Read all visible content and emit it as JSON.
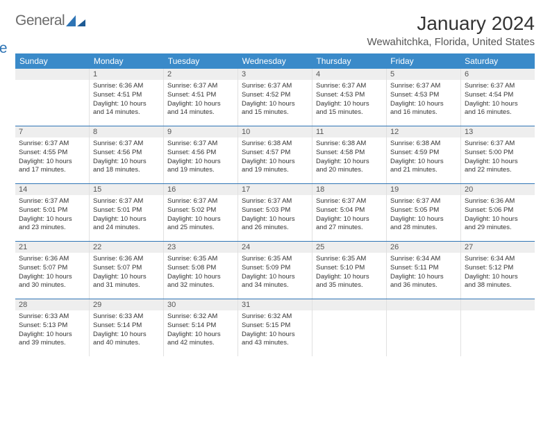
{
  "logo": {
    "general": "General",
    "blue": "Blue"
  },
  "title": "January 2024",
  "location": "Wewahitchka, Florida, United States",
  "headerColor": "#3a8ac9",
  "borderColor": "#2e74b5",
  "dayHeaders": [
    "Sunday",
    "Monday",
    "Tuesday",
    "Wednesday",
    "Thursday",
    "Friday",
    "Saturday"
  ],
  "weeks": [
    [
      {
        "n": "",
        "sr": "",
        "ss": "",
        "d1": "",
        "d2": ""
      },
      {
        "n": "1",
        "sr": "Sunrise: 6:36 AM",
        "ss": "Sunset: 4:51 PM",
        "d1": "Daylight: 10 hours",
        "d2": "and 14 minutes."
      },
      {
        "n": "2",
        "sr": "Sunrise: 6:37 AM",
        "ss": "Sunset: 4:51 PM",
        "d1": "Daylight: 10 hours",
        "d2": "and 14 minutes."
      },
      {
        "n": "3",
        "sr": "Sunrise: 6:37 AM",
        "ss": "Sunset: 4:52 PM",
        "d1": "Daylight: 10 hours",
        "d2": "and 15 minutes."
      },
      {
        "n": "4",
        "sr": "Sunrise: 6:37 AM",
        "ss": "Sunset: 4:53 PM",
        "d1": "Daylight: 10 hours",
        "d2": "and 15 minutes."
      },
      {
        "n": "5",
        "sr": "Sunrise: 6:37 AM",
        "ss": "Sunset: 4:53 PM",
        "d1": "Daylight: 10 hours",
        "d2": "and 16 minutes."
      },
      {
        "n": "6",
        "sr": "Sunrise: 6:37 AM",
        "ss": "Sunset: 4:54 PM",
        "d1": "Daylight: 10 hours",
        "d2": "and 16 minutes."
      }
    ],
    [
      {
        "n": "7",
        "sr": "Sunrise: 6:37 AM",
        "ss": "Sunset: 4:55 PM",
        "d1": "Daylight: 10 hours",
        "d2": "and 17 minutes."
      },
      {
        "n": "8",
        "sr": "Sunrise: 6:37 AM",
        "ss": "Sunset: 4:56 PM",
        "d1": "Daylight: 10 hours",
        "d2": "and 18 minutes."
      },
      {
        "n": "9",
        "sr": "Sunrise: 6:37 AM",
        "ss": "Sunset: 4:56 PM",
        "d1": "Daylight: 10 hours",
        "d2": "and 19 minutes."
      },
      {
        "n": "10",
        "sr": "Sunrise: 6:38 AM",
        "ss": "Sunset: 4:57 PM",
        "d1": "Daylight: 10 hours",
        "d2": "and 19 minutes."
      },
      {
        "n": "11",
        "sr": "Sunrise: 6:38 AM",
        "ss": "Sunset: 4:58 PM",
        "d1": "Daylight: 10 hours",
        "d2": "and 20 minutes."
      },
      {
        "n": "12",
        "sr": "Sunrise: 6:38 AM",
        "ss": "Sunset: 4:59 PM",
        "d1": "Daylight: 10 hours",
        "d2": "and 21 minutes."
      },
      {
        "n": "13",
        "sr": "Sunrise: 6:37 AM",
        "ss": "Sunset: 5:00 PM",
        "d1": "Daylight: 10 hours",
        "d2": "and 22 minutes."
      }
    ],
    [
      {
        "n": "14",
        "sr": "Sunrise: 6:37 AM",
        "ss": "Sunset: 5:01 PM",
        "d1": "Daylight: 10 hours",
        "d2": "and 23 minutes."
      },
      {
        "n": "15",
        "sr": "Sunrise: 6:37 AM",
        "ss": "Sunset: 5:01 PM",
        "d1": "Daylight: 10 hours",
        "d2": "and 24 minutes."
      },
      {
        "n": "16",
        "sr": "Sunrise: 6:37 AM",
        "ss": "Sunset: 5:02 PM",
        "d1": "Daylight: 10 hours",
        "d2": "and 25 minutes."
      },
      {
        "n": "17",
        "sr": "Sunrise: 6:37 AM",
        "ss": "Sunset: 5:03 PM",
        "d1": "Daylight: 10 hours",
        "d2": "and 26 minutes."
      },
      {
        "n": "18",
        "sr": "Sunrise: 6:37 AM",
        "ss": "Sunset: 5:04 PM",
        "d1": "Daylight: 10 hours",
        "d2": "and 27 minutes."
      },
      {
        "n": "19",
        "sr": "Sunrise: 6:37 AM",
        "ss": "Sunset: 5:05 PM",
        "d1": "Daylight: 10 hours",
        "d2": "and 28 minutes."
      },
      {
        "n": "20",
        "sr": "Sunrise: 6:36 AM",
        "ss": "Sunset: 5:06 PM",
        "d1": "Daylight: 10 hours",
        "d2": "and 29 minutes."
      }
    ],
    [
      {
        "n": "21",
        "sr": "Sunrise: 6:36 AM",
        "ss": "Sunset: 5:07 PM",
        "d1": "Daylight: 10 hours",
        "d2": "and 30 minutes."
      },
      {
        "n": "22",
        "sr": "Sunrise: 6:36 AM",
        "ss": "Sunset: 5:07 PM",
        "d1": "Daylight: 10 hours",
        "d2": "and 31 minutes."
      },
      {
        "n": "23",
        "sr": "Sunrise: 6:35 AM",
        "ss": "Sunset: 5:08 PM",
        "d1": "Daylight: 10 hours",
        "d2": "and 32 minutes."
      },
      {
        "n": "24",
        "sr": "Sunrise: 6:35 AM",
        "ss": "Sunset: 5:09 PM",
        "d1": "Daylight: 10 hours",
        "d2": "and 34 minutes."
      },
      {
        "n": "25",
        "sr": "Sunrise: 6:35 AM",
        "ss": "Sunset: 5:10 PM",
        "d1": "Daylight: 10 hours",
        "d2": "and 35 minutes."
      },
      {
        "n": "26",
        "sr": "Sunrise: 6:34 AM",
        "ss": "Sunset: 5:11 PM",
        "d1": "Daylight: 10 hours",
        "d2": "and 36 minutes."
      },
      {
        "n": "27",
        "sr": "Sunrise: 6:34 AM",
        "ss": "Sunset: 5:12 PM",
        "d1": "Daylight: 10 hours",
        "d2": "and 38 minutes."
      }
    ],
    [
      {
        "n": "28",
        "sr": "Sunrise: 6:33 AM",
        "ss": "Sunset: 5:13 PM",
        "d1": "Daylight: 10 hours",
        "d2": "and 39 minutes."
      },
      {
        "n": "29",
        "sr": "Sunrise: 6:33 AM",
        "ss": "Sunset: 5:14 PM",
        "d1": "Daylight: 10 hours",
        "d2": "and 40 minutes."
      },
      {
        "n": "30",
        "sr": "Sunrise: 6:32 AM",
        "ss": "Sunset: 5:14 PM",
        "d1": "Daylight: 10 hours",
        "d2": "and 42 minutes."
      },
      {
        "n": "31",
        "sr": "Sunrise: 6:32 AM",
        "ss": "Sunset: 5:15 PM",
        "d1": "Daylight: 10 hours",
        "d2": "and 43 minutes."
      },
      {
        "n": "",
        "sr": "",
        "ss": "",
        "d1": "",
        "d2": ""
      },
      {
        "n": "",
        "sr": "",
        "ss": "",
        "d1": "",
        "d2": ""
      },
      {
        "n": "",
        "sr": "",
        "ss": "",
        "d1": "",
        "d2": ""
      }
    ]
  ]
}
